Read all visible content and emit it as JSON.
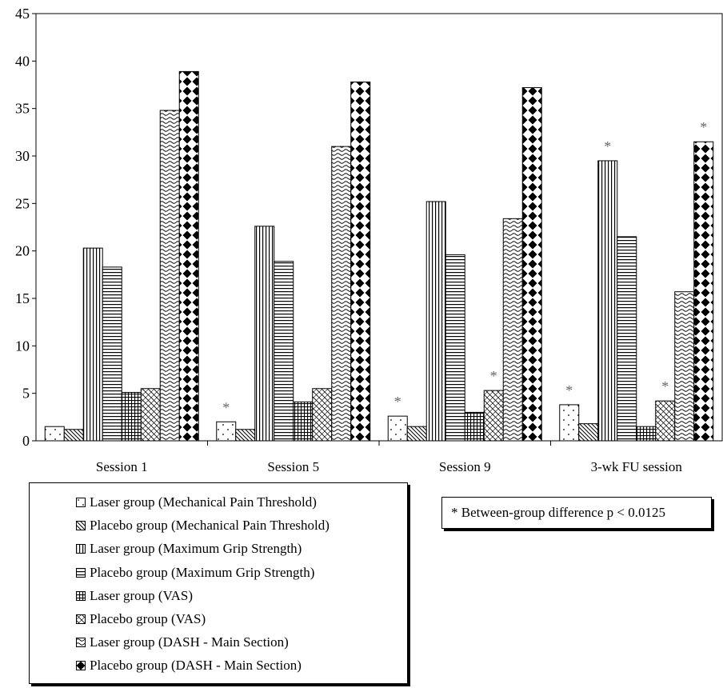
{
  "chart_data": {
    "type": "bar",
    "categories": [
      "Session 1",
      "Session 5",
      "Session 9",
      "3-wk FU session"
    ],
    "ylim": [
      0,
      45
    ],
    "yticks": [
      0,
      5,
      10,
      15,
      20,
      25,
      30,
      35,
      40,
      45
    ],
    "grid": false,
    "legend_placement": "bottom-left",
    "series": [
      {
        "name": "Laser group (Mechanical Pain Threshold)",
        "pattern": "dots",
        "values": [
          1.5,
          2.0,
          2.6,
          3.8
        ]
      },
      {
        "name": "Placebo group (Mechanical Pain Threshold)",
        "pattern": "diag-lines",
        "values": [
          1.2,
          1.2,
          1.5,
          1.8
        ]
      },
      {
        "name": "Laser group (Maximum Grip Strength)",
        "pattern": "vertical-lines",
        "values": [
          20.3,
          22.6,
          25.2,
          29.5
        ]
      },
      {
        "name": "Placebo group (Maximum Grip Strength)",
        "pattern": "horizontal-lines",
        "values": [
          18.3,
          18.9,
          19.6,
          21.5
        ]
      },
      {
        "name": "Laser group (VAS)",
        "pattern": "grid",
        "values": [
          5.1,
          4.1,
          3.0,
          1.5
        ]
      },
      {
        "name": "Placebo group (VAS)",
        "pattern": "diag-cross",
        "values": [
          5.5,
          5.5,
          5.3,
          4.2
        ]
      },
      {
        "name": "Laser group (DASH - Main Section)",
        "pattern": "waves",
        "values": [
          34.8,
          31.0,
          23.4,
          15.7
        ]
      },
      {
        "name": "Placebo group (DASH - Main Section)",
        "pattern": "diamonds",
        "values": [
          38.9,
          37.8,
          37.2,
          31.5
        ]
      }
    ],
    "significance": [
      {
        "category": "Session 5",
        "series": 0,
        "label": "*"
      },
      {
        "category": "Session 9",
        "series": 0,
        "label": "*"
      },
      {
        "category": "Session 9",
        "series": 5,
        "label": "*"
      },
      {
        "category": "3-wk FU session",
        "series": 0,
        "label": "*"
      },
      {
        "category": "3-wk FU session",
        "series": 2,
        "label": "*"
      },
      {
        "category": "3-wk FU session",
        "series": 5,
        "label": "*"
      },
      {
        "category": "3-wk FU session",
        "series": 7,
        "label": "*"
      }
    ],
    "annotation": "* Between-group difference p < 0.0125"
  }
}
